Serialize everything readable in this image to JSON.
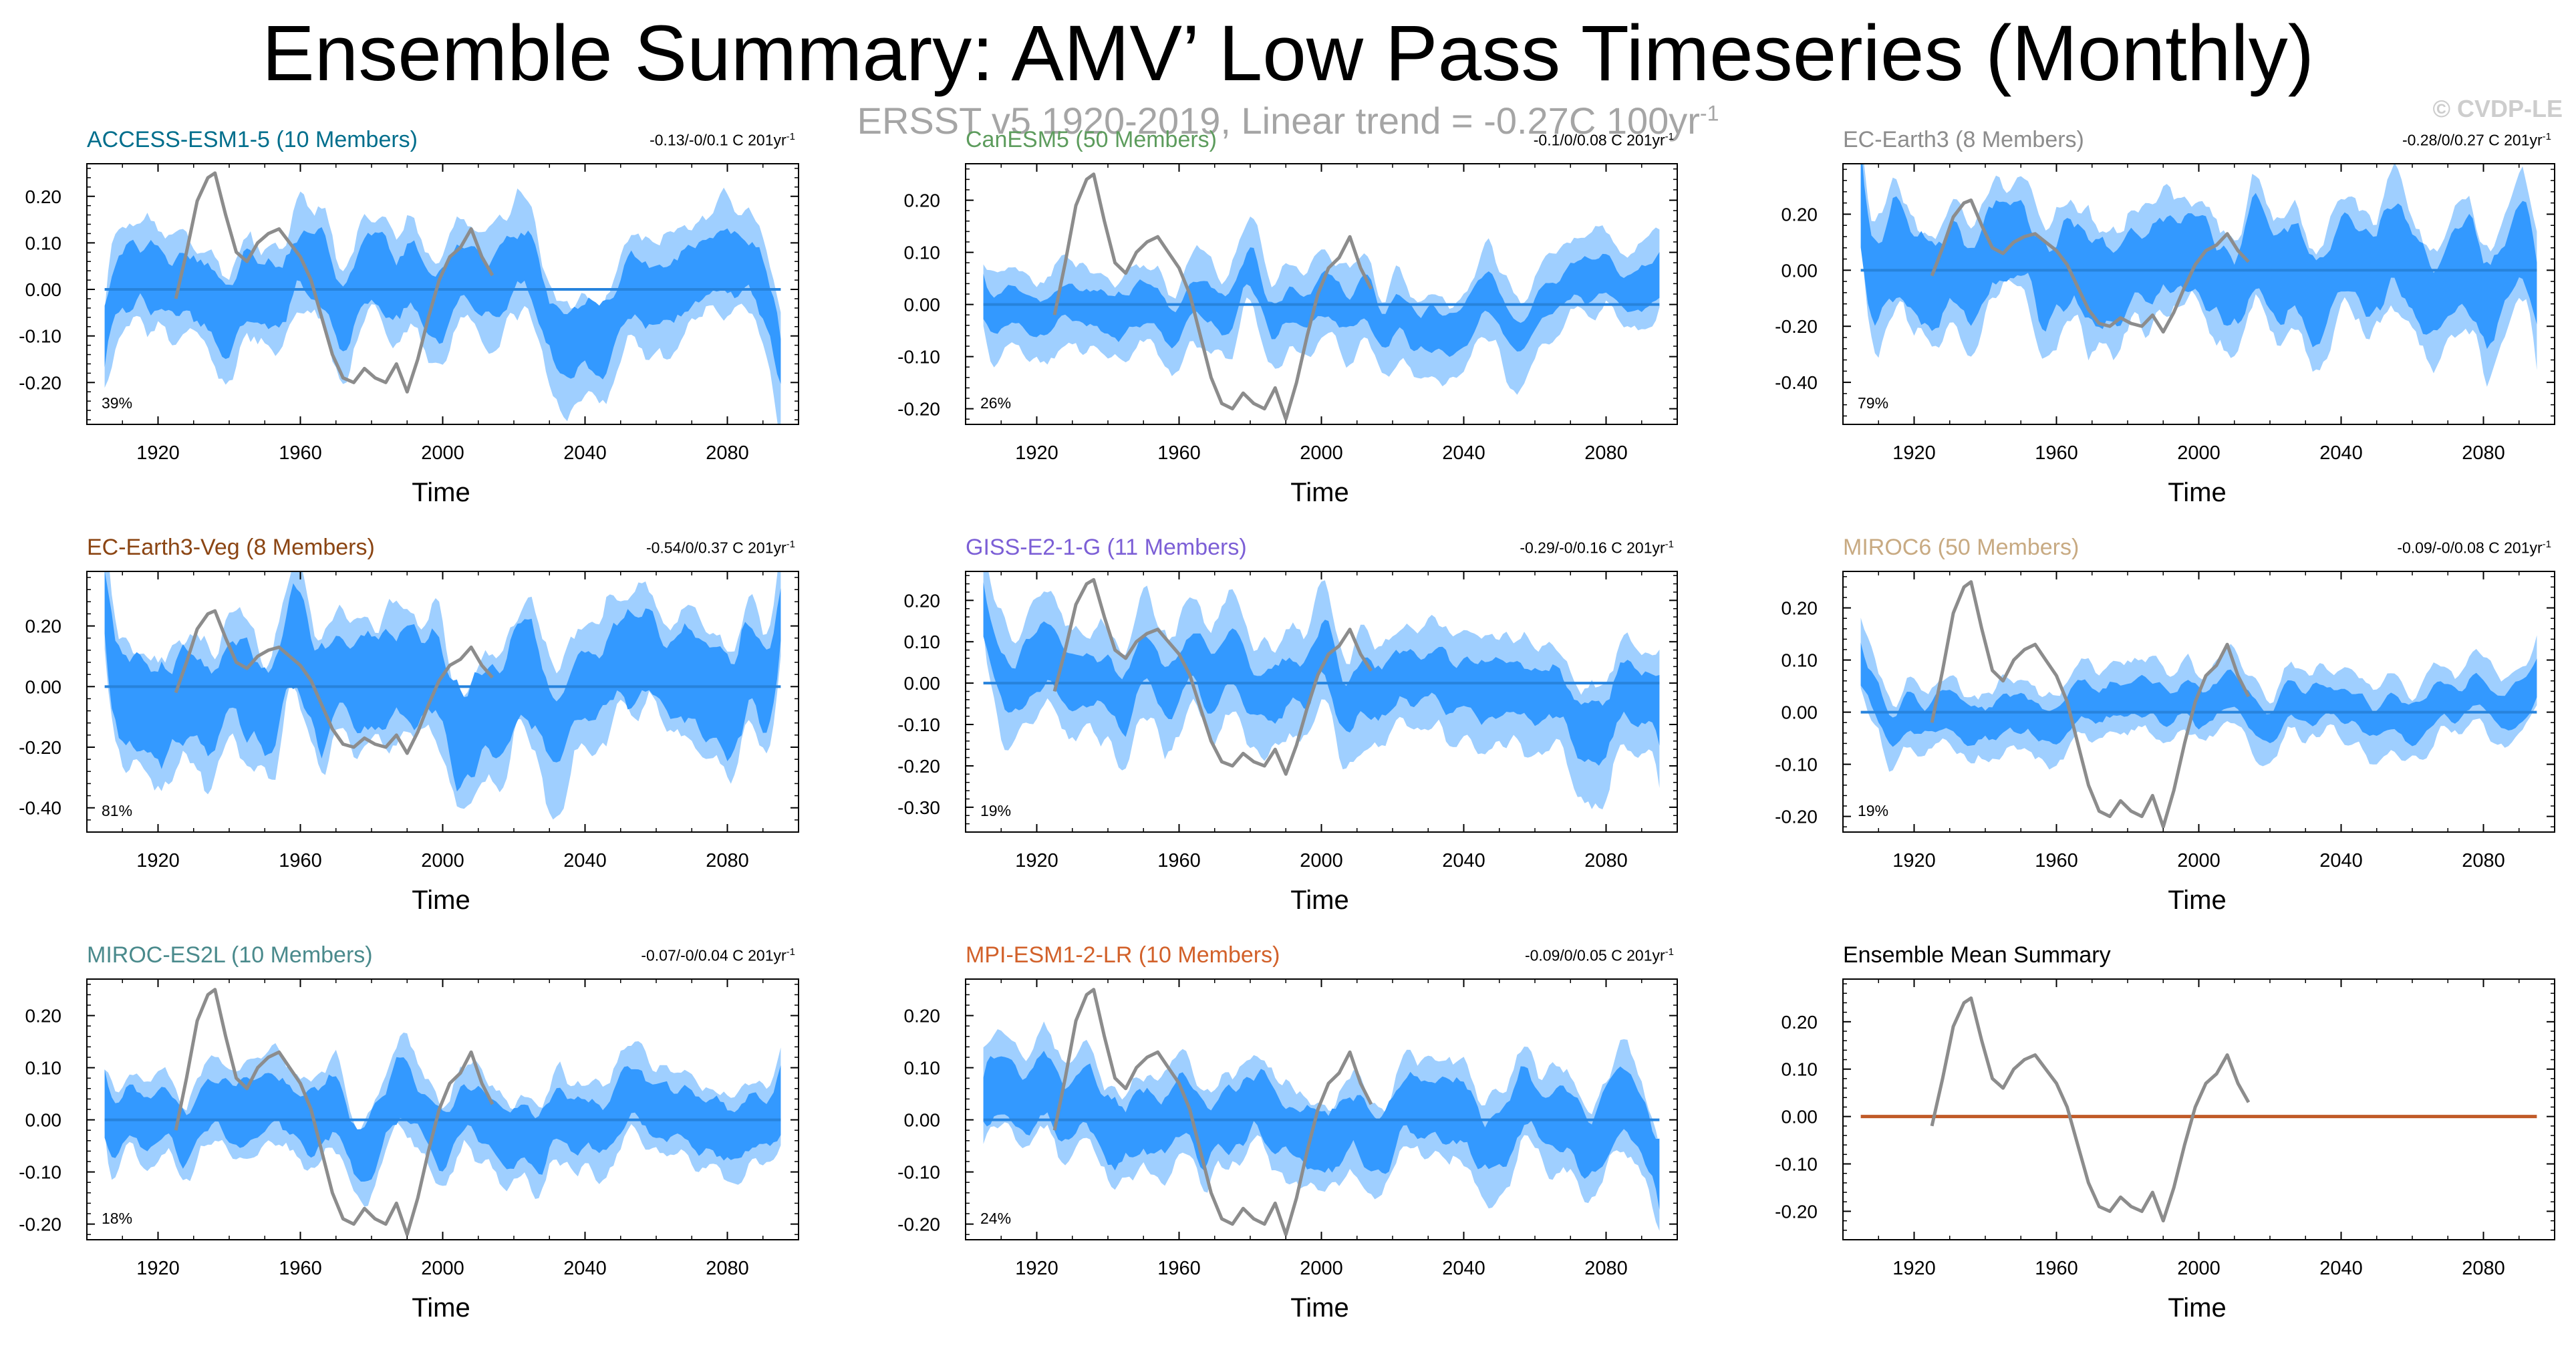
{
  "title": "Ensemble Summary: AMV’ Low Pass Timeseries (Monthly)",
  "subtitle": "ERSST v5 1920-2019, Linear trend = -0.27C 100yr",
  "subtitle_sup": "-1",
  "copyright": "© CVDP-LE",
  "colors": {
    "outer_band": "#9fcfff",
    "inner_band": "#3399ff",
    "ensemble_mean": "#2783dc",
    "observations": "#8c8c8c",
    "summary_line": "#c05a28"
  },
  "chart_data": {
    "type": "line",
    "x": "years 1905-2095",
    "x_ticks": [
      "1920",
      "1960",
      "2000",
      "2040",
      "2080"
    ],
    "xlabel": "Time",
    "observed_series": {
      "name": "ERSST v5",
      "years": [
        1925,
        1928,
        1931,
        1934,
        1936,
        1939,
        1942,
        1945,
        1948,
        1951,
        1954,
        1957,
        1960,
        1963,
        1966,
        1969,
        1972,
        1975,
        1978,
        1981,
        1984,
        1987,
        1990,
        1993,
        1996,
        1999,
        2002,
        2005,
        2008,
        2011,
        2014
      ],
      "values": [
        -0.02,
        0.08,
        0.19,
        0.24,
        0.25,
        0.16,
        0.08,
        0.06,
        0.1,
        0.12,
        0.13,
        0.1,
        0.07,
        0.02,
        -0.06,
        -0.14,
        -0.19,
        -0.2,
        -0.17,
        -0.19,
        -0.2,
        -0.16,
        -0.22,
        -0.15,
        -0.06,
        0.02,
        0.07,
        0.09,
        0.13,
        0.07,
        0.03
      ]
    },
    "panels": [
      {
        "title": "ACCESS-ESM1-5 (10 Members)",
        "title_color": "#006e8c",
        "range": "-0.13/-0/0.1 C 201yr",
        "range_sup": "-1",
        "percent": "39%",
        "ylim": [
          -0.29,
          0.27
        ],
        "y_ticks": [
          "0.20",
          "0.10",
          "0.00",
          "-0.10",
          "-0.20"
        ],
        "y_values": [
          0.2,
          0.1,
          0.0,
          -0.1,
          -0.2
        ],
        "outer_amp": 0.14,
        "inner_amp": 0.08,
        "seed": 3
      },
      {
        "title": "CanESM5 (50 Members)",
        "title_color": "#5d9c5d",
        "range": "-0.1/0/0.08 C 201yr",
        "range_sup": "-1",
        "percent": "26%",
        "ylim": [
          -0.23,
          0.27
        ],
        "y_ticks": [
          "0.20",
          "0.10",
          "0.00",
          "-0.10",
          "-0.20"
        ],
        "y_values": [
          0.2,
          0.1,
          0.0,
          -0.1,
          -0.2
        ],
        "outer_amp": 0.1,
        "inner_amp": 0.045,
        "seed": 7
      },
      {
        "title": "EC-Earth3 (8 Members)",
        "title_color": "#8c8c8c",
        "range": "-0.28/0/0.27 C 201yr",
        "range_sup": "-1",
        "percent": "79%",
        "ylim": [
          -0.55,
          0.38
        ],
        "y_ticks": [
          "0.20",
          "0.00",
          "-0.20",
          "-0.40"
        ],
        "y_values": [
          0.2,
          0.0,
          -0.2,
          -0.4
        ],
        "outer_amp": 0.26,
        "inner_amp": 0.17,
        "seed": 11
      },
      {
        "title": "EC-Earth3-Veg (8 Members)",
        "title_color": "#8b4513",
        "range": "-0.54/0/0.37 C 201yr",
        "range_sup": "-1",
        "percent": "81%",
        "ylim": [
          -0.48,
          0.38
        ],
        "y_ticks": [
          "0.20",
          "0.00",
          "-0.20",
          "-0.40"
        ],
        "y_values": [
          0.2,
          0.0,
          -0.2,
          -0.4
        ],
        "outer_amp": 0.26,
        "inner_amp": 0.17,
        "seed": 17
      },
      {
        "title": "GISS-E2-1-G (11 Members)",
        "title_color": "#7c5fd6",
        "range": "-0.29/-0/0.16 C 201yr",
        "range_sup": "-1",
        "percent": "19%",
        "ylim": [
          -0.36,
          0.27
        ],
        "y_ticks": [
          "0.20",
          "0.10",
          "0.00",
          "-0.10",
          "-0.20",
          "-0.30"
        ],
        "y_values": [
          0.2,
          0.1,
          0.0,
          -0.1,
          -0.2,
          -0.3
        ],
        "outer_amp": 0.16,
        "inner_amp": 0.08,
        "seed": 23
      },
      {
        "title": "MIROC6 (50 Members)",
        "title_color": "#c8aa82",
        "range": "-0.09/-0/0.08 C 201yr",
        "range_sup": "-1",
        "percent": "19%",
        "ylim": [
          -0.23,
          0.27
        ],
        "y_ticks": [
          "0.20",
          "0.10",
          "0.00",
          "-0.10",
          "-0.20"
        ],
        "y_values": [
          0.2,
          0.1,
          0.0,
          -0.1,
          -0.2
        ],
        "outer_amp": 0.08,
        "inner_amp": 0.04,
        "seed": 29
      },
      {
        "title": "MIROC-ES2L (10 Members)",
        "title_color": "#4a8a8c",
        "range": "-0.07/-0/0.04 C 201yr",
        "range_sup": "-1",
        "percent": "18%",
        "ylim": [
          -0.23,
          0.27
        ],
        "y_ticks": [
          "0.20",
          "0.10",
          "0.00",
          "-0.10",
          "-0.20"
        ],
        "y_values": [
          0.2,
          0.1,
          0.0,
          -0.1,
          -0.2
        ],
        "outer_amp": 0.1,
        "inner_amp": 0.06,
        "seed": 31
      },
      {
        "title": "MPI-ESM1-2-LR (10 Members)",
        "title_color": "#d2612a",
        "range": "-0.09/0/0.05 C 201yr",
        "range_sup": "-1",
        "percent": "24%",
        "ylim": [
          -0.23,
          0.27
        ],
        "y_ticks": [
          "0.20",
          "0.10",
          "0.00",
          "-0.10",
          "-0.20"
        ],
        "y_values": [
          0.2,
          0.1,
          0.0,
          -0.1,
          -0.2
        ],
        "outer_amp": 0.11,
        "inner_amp": 0.07,
        "seed": 37
      },
      {
        "title": "Ensemble Mean Summary",
        "title_color": "#000000",
        "range": "",
        "range_sup": "",
        "percent": "",
        "ylim": [
          -0.26,
          0.29
        ],
        "y_ticks": [
          "0.20",
          "0.10",
          "0.00",
          "-0.10",
          "-0.20"
        ],
        "y_values": [
          0.2,
          0.1,
          0.0,
          -0.1,
          -0.2
        ],
        "outer_amp": 0,
        "inner_amp": 0,
        "seed": 41,
        "summary": true
      }
    ]
  }
}
